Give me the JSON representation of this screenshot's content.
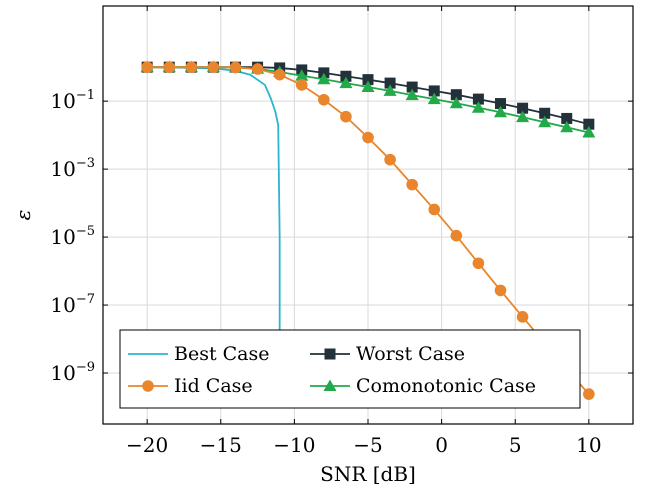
{
  "chart_data": {
    "type": "line",
    "xlabel": "SNR [dB]",
    "ylabel": "ε",
    "xlim": [
      -23,
      13
    ],
    "ylim_log10": [
      -10.5,
      1.8
    ],
    "yscale": "log",
    "grid": true,
    "legend_position": "bottom-left",
    "xticks": [
      -20,
      -15,
      -10,
      -5,
      0,
      5,
      10
    ],
    "xtick_labels": [
      "−20",
      "−15",
      "−10",
      "−5",
      "0",
      "5",
      "10"
    ],
    "yticks": [
      {
        "base": "10",
        "exp": "−1",
        "value": 0.1
      },
      {
        "base": "10",
        "exp": "−3",
        "value": 0.001
      },
      {
        "base": "10",
        "exp": "−5",
        "value": 1e-05
      },
      {
        "base": "10",
        "exp": "−7",
        "value": 1e-07
      },
      {
        "base": "10",
        "exp": "−9",
        "value": 1e-09
      }
    ],
    "series": [
      {
        "name": "Best Case",
        "color": "#2BB5CF",
        "marker": "none",
        "x": [
          -20,
          -18,
          -16,
          -15,
          -14,
          -13,
          -12,
          -11.6,
          -11.3,
          -11.1,
          -11.0,
          -11.0
        ],
        "y": [
          1.0,
          0.98,
          0.93,
          0.88,
          0.78,
          0.6,
          0.3,
          0.12,
          0.05,
          0.02,
          1e-05,
          1e-10
        ]
      },
      {
        "name": "Worst Case",
        "color": "#22313A",
        "marker": "square",
        "x": [
          -20,
          -18.5,
          -17,
          -15.5,
          -14,
          -12.5,
          -11,
          -9.5,
          -8,
          -6.5,
          -5,
          -3.5,
          -2,
          -0.5,
          1,
          2.5,
          4,
          5.5,
          7,
          8.5,
          10
        ],
        "y": [
          1.0,
          1.0,
          1.0,
          1.0,
          1.0,
          1.0,
          0.95,
          0.83,
          0.68,
          0.54,
          0.43,
          0.34,
          0.26,
          0.2,
          0.155,
          0.115,
          0.085,
          0.062,
          0.044,
          0.031,
          0.021
        ]
      },
      {
        "name": "Iid Case",
        "color": "#E9852C",
        "marker": "circle",
        "x": [
          -20,
          -18.5,
          -17,
          -15.5,
          -14,
          -12.5,
          -11,
          -9.5,
          -8,
          -6.5,
          -5,
          -3.5,
          -2,
          -0.5,
          1,
          2.5,
          4,
          5.5,
          7,
          8.5,
          10
        ],
        "y": [
          1.0,
          1.0,
          1.0,
          1.0,
          0.98,
          0.88,
          0.6,
          0.3,
          0.11,
          0.035,
          0.0085,
          0.0019,
          0.00035,
          6.5e-05,
          1.1e-05,
          1.7e-06,
          2.7e-07,
          4.5e-08,
          7.5e-09,
          1.3e-09,
          2.4e-10
        ]
      },
      {
        "name": "Comonotonic Case",
        "color": "#21A94A",
        "marker": "triangle",
        "x": [
          -20,
          -18.5,
          -17,
          -15.5,
          -14,
          -12.5,
          -11,
          -9.5,
          -8,
          -6.5,
          -5,
          -3.5,
          -2,
          -0.5,
          1,
          2.5,
          4,
          5.5,
          7,
          8.5,
          10
        ],
        "y": [
          1.0,
          1.0,
          1.0,
          1.0,
          0.98,
          0.9,
          0.72,
          0.56,
          0.44,
          0.34,
          0.26,
          0.2,
          0.15,
          0.115,
          0.087,
          0.064,
          0.047,
          0.034,
          0.024,
          0.017,
          0.012
        ]
      }
    ],
    "legend_rows": [
      [
        "Best Case",
        "Worst Case"
      ],
      [
        "Iid Case",
        "Comonotonic Case"
      ]
    ]
  }
}
